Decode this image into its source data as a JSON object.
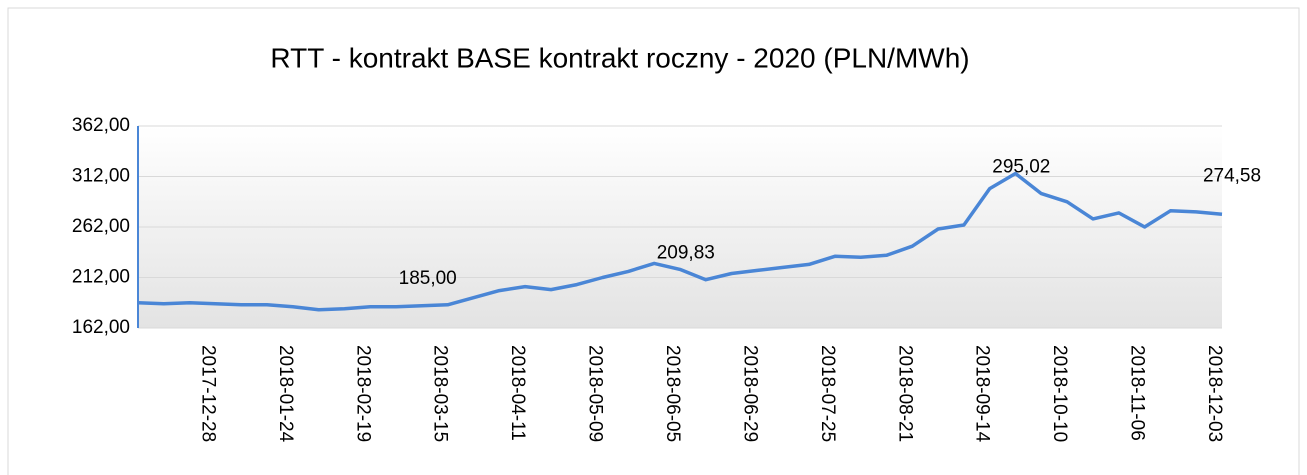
{
  "chart_data": {
    "type": "line",
    "title": "RTT - kontrakt BASE kontrakt roczny - 2020 (PLN/MWh)",
    "categories": [
      null,
      null,
      null,
      "2017-12-28",
      null,
      null,
      "2018-01-24",
      null,
      null,
      "2018-02-19",
      null,
      null,
      "2018-03-15",
      null,
      null,
      "2018-04-11",
      null,
      null,
      "2018-05-09",
      null,
      null,
      "2018-06-05",
      null,
      null,
      "2018-06-29",
      null,
      null,
      "2018-07-25",
      null,
      null,
      "2018-08-21",
      null,
      null,
      "2018-09-14",
      null,
      null,
      "2018-10-10",
      null,
      null,
      "2018-11-06",
      null,
      null,
      "2018-12-03"
    ],
    "values": [
      187,
      186,
      187,
      186,
      185,
      185,
      183,
      180,
      181,
      183,
      183,
      184,
      185,
      192,
      199,
      203,
      200,
      205,
      212,
      218,
      226,
      220,
      209.83,
      216,
      219,
      222,
      225,
      233,
      232,
      234,
      243,
      260,
      264,
      300,
      315,
      295.02,
      287,
      270,
      276,
      262,
      278,
      277,
      274.58
    ],
    "value_labels": [
      null,
      null,
      null,
      null,
      null,
      null,
      null,
      null,
      null,
      null,
      null,
      null,
      "185,00",
      null,
      null,
      null,
      null,
      null,
      null,
      null,
      null,
      null,
      "209,83",
      null,
      null,
      null,
      null,
      null,
      null,
      null,
      null,
      null,
      null,
      null,
      null,
      "295,02",
      null,
      null,
      null,
      null,
      null,
      null,
      "274,58"
    ],
    "color": "#4a86d6",
    "ylim": [
      162,
      362
    ],
    "yticks": [
      {
        "value": 162,
        "label": "162,00"
      },
      {
        "value": 212,
        "label": "212,00"
      },
      {
        "value": 262,
        "label": "262,00"
      },
      {
        "value": 312,
        "label": "312,00"
      },
      {
        "value": 362,
        "label": "362,00"
      }
    ],
    "grid": true
  }
}
